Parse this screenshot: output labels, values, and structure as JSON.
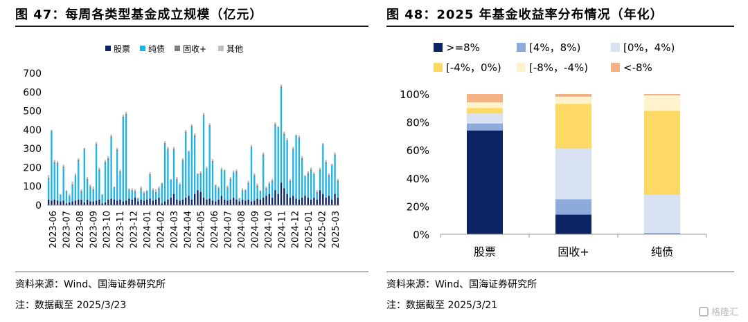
{
  "left": {
    "title": "图 47：每周各类型基金成立规模（亿元）",
    "source": "资料来源：Wind、国海证券研究所",
    "note": "注：数据截至 2025/3/23"
  },
  "right": {
    "title": "图 48：2025 年基金收益率分布情况（年化）",
    "source": "资料来源：Wind、国海证券研究所",
    "note": "注：数据截至 2025/3/21"
  },
  "watermark": "格隆汇",
  "chart_data": [
    {
      "type": "bar",
      "stacked": true,
      "title": "每周各类型基金成立规模（亿元）",
      "legend_position": "top",
      "ylim": [
        0,
        700
      ],
      "yticks": [
        0,
        100,
        200,
        300,
        400,
        500,
        600,
        700
      ],
      "x_tick_labels": [
        "2023-06",
        "2023-07",
        "2023-08",
        "2023-09",
        "2023-10",
        "2023-11",
        "2023-12",
        "2024-01",
        "2024-02",
        "2024-03",
        "2024-04",
        "2024-05",
        "2024-06",
        "2024-07",
        "2024-08",
        "2024-09",
        "2024-10",
        "2024-11",
        "2024-12",
        "2025-01",
        "2025-02",
        "2025-03"
      ],
      "series": [
        {
          "name": "股票",
          "color": "#0d2464",
          "values": [
            30,
            25,
            30,
            25,
            20,
            25,
            10,
            15,
            20,
            25,
            30,
            30,
            15,
            30,
            20,
            20,
            25,
            30,
            10,
            15,
            30,
            35,
            30,
            25,
            30,
            20,
            25,
            35,
            30,
            40,
            20,
            30,
            25,
            30,
            35,
            25,
            30,
            40,
            10,
            20,
            30,
            40,
            60,
            30,
            25,
            30,
            40,
            50,
            30,
            60,
            80,
            70,
            40,
            30,
            35,
            25,
            20,
            30,
            50,
            30,
            25,
            30,
            40,
            30,
            20,
            30,
            25,
            30,
            20,
            25,
            35,
            30,
            40,
            50,
            60,
            40,
            80,
            60,
            120,
            90,
            60,
            40,
            50,
            35,
            30,
            40,
            50,
            40,
            30,
            40,
            30,
            80,
            60,
            40,
            50,
            30,
            60,
            40
          ]
        },
        {
          "name": "纯债",
          "color": "#1eb4e6",
          "values": [
            105,
            365,
            190,
            190,
            30,
            170,
            60,
            30,
            80,
            130,
            200,
            35,
            275,
            100,
            75,
            55,
            290,
            150,
            40,
            205,
            210,
            320,
            60,
            260,
            140,
            440,
            450,
            45,
            40,
            30,
            10,
            50,
            30,
            40,
            120,
            50,
            30,
            40,
            100,
            300,
            260,
            90,
            230,
            100,
            80,
            200,
            340,
            230,
            380,
            300,
            80,
            90,
            430,
            160,
            380,
            200,
            80,
            50,
            130,
            150,
            60,
            100,
            130,
            140,
            10,
            40,
            50,
            80,
            280,
            130,
            60,
            40,
            220,
            30,
            50,
            80,
            340,
            350,
            500,
            280,
            280,
            80,
            240,
            330,
            320,
            200,
            100,
            120,
            150,
            120,
            30,
            100,
            260,
            180,
            100,
            180,
            200,
            80
          ]
        },
        {
          "name": "固收+",
          "color": "#7f7f7f",
          "values": [
            10,
            5,
            10,
            10,
            5,
            10,
            5,
            5,
            10,
            5,
            10,
            10,
            10,
            10,
            5,
            10,
            10,
            10,
            5,
            10,
            10,
            10,
            5,
            10,
            10,
            10,
            10,
            5,
            10,
            5,
            5,
            10,
            10,
            5,
            10,
            5,
            10,
            10,
            5,
            10,
            10,
            5,
            10,
            10,
            5,
            10,
            10,
            5,
            10,
            10,
            5,
            10,
            10,
            5,
            10,
            10,
            5,
            10,
            10,
            5,
            10,
            10,
            5,
            10,
            5,
            10,
            5,
            10,
            10,
            5,
            10,
            5,
            10,
            10,
            5,
            10,
            10,
            5,
            10,
            10,
            5,
            10,
            10,
            5,
            10,
            10,
            5,
            10,
            10,
            5,
            10,
            10,
            5,
            10,
            10,
            5,
            10,
            10
          ]
        },
        {
          "name": "其他",
          "color": "#bfbfbf",
          "values": [
            15,
            5,
            10,
            10,
            5,
            10,
            5,
            10,
            15,
            10,
            10,
            10,
            5,
            10,
            10,
            15,
            10,
            10,
            5,
            10,
            10,
            10,
            5,
            10,
            10,
            10,
            10,
            5,
            10,
            10,
            5,
            10,
            10,
            5,
            10,
            10,
            15,
            10,
            5,
            10,
            10,
            5,
            10,
            10,
            10,
            10,
            10,
            5,
            10,
            10,
            5,
            10,
            10,
            10,
            10,
            10,
            5,
            10,
            10,
            5,
            10,
            10,
            10,
            10,
            5,
            10,
            5,
            10,
            10,
            10,
            10,
            5,
            10,
            10,
            10,
            10,
            10,
            5,
            10,
            10,
            10,
            10,
            10,
            5,
            10,
            10,
            5,
            10,
            10,
            10,
            10,
            10,
            5,
            10,
            10,
            5,
            10,
            10
          ]
        }
      ]
    },
    {
      "type": "bar",
      "stacked": true,
      "percent": true,
      "title": "2025 年基金收益率分布情况（年化）",
      "legend_position": "top",
      "ylim": [
        0,
        100
      ],
      "yticks": [
        "0%",
        "20%",
        "40%",
        "60%",
        "80%",
        "100%"
      ],
      "categories": [
        "股票",
        "固收+",
        "纯债"
      ],
      "series": [
        {
          "name": ">=8%",
          "color": "#0d2464",
          "values": [
            74,
            14,
            0
          ]
        },
        {
          "name": "[4%，8%)",
          "color": "#8eaadb",
          "values": [
            5,
            11,
            1
          ]
        },
        {
          "name": "[0%，4%)",
          "color": "#d9e2f3",
          "values": [
            7,
            36,
            27
          ]
        },
        {
          "name": "[-4%，0%)",
          "color": "#ffd966",
          "values": [
            4,
            32,
            60
          ]
        },
        {
          "name": "[-8%，-4%)",
          "color": "#fff2cc",
          "values": [
            4,
            5,
            11
          ]
        },
        {
          "name": "<-8%",
          "color": "#f4b183",
          "values": [
            6,
            2,
            1
          ]
        }
      ]
    }
  ]
}
